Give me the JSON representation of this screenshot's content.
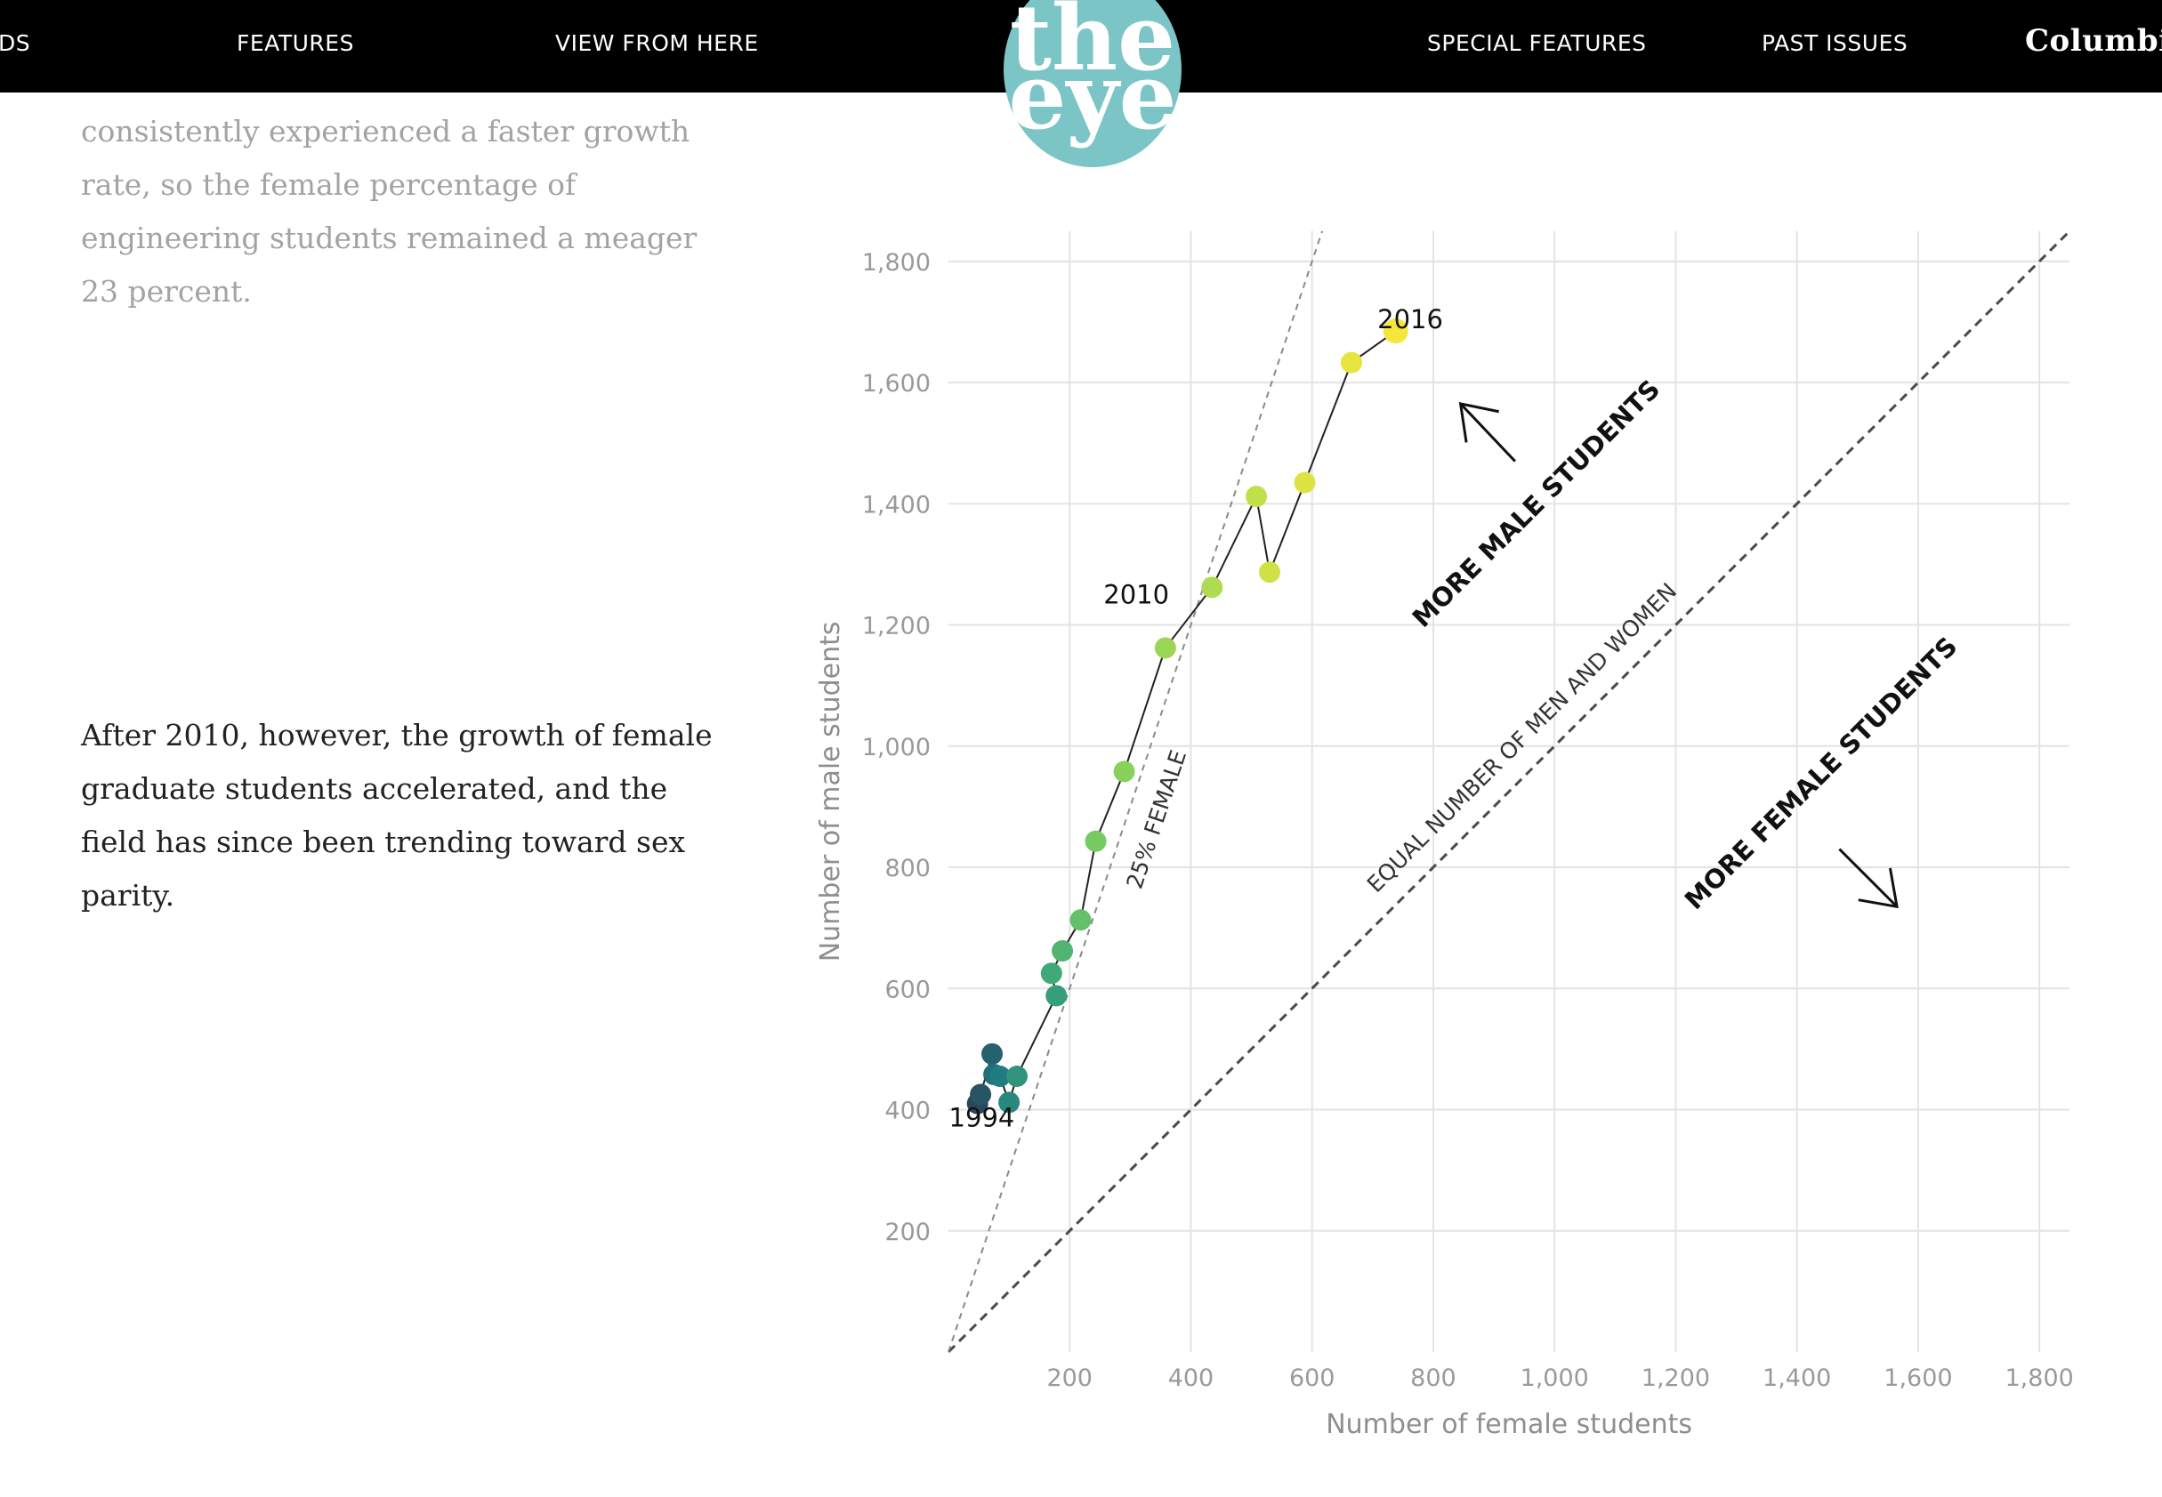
{
  "nav": {
    "partial_left": "DS",
    "features": "FEATURES",
    "view_from_here": "VIEW FROM HERE",
    "special_features": "SPECIAL FEATURES",
    "past_issues": "PAST ISSUES",
    "logo_line1": "the",
    "logo_line2": "eye",
    "columbia": "Columbia",
    "logo_color": "#7cc5c7"
  },
  "article": {
    "faded_lines": [
      "consistently experienced a faster growth",
      "rate, so the female percentage of",
      "engineering students remained a meager",
      "23 percent."
    ],
    "main_lines": [
      "After 2010, however, the growth of female",
      "graduate students accelerated, and the",
      "field has since been trending toward sex",
      "parity."
    ]
  },
  "chart_data": {
    "type": "scatter",
    "xlabel": "Number of female students",
    "ylabel": "Number of male students",
    "xlim": [
      0,
      1850
    ],
    "ylim": [
      0,
      1850
    ],
    "xticks": [
      200,
      400,
      600,
      800,
      1000,
      1200,
      1400,
      1600,
      1800
    ],
    "yticks": [
      200,
      400,
      600,
      800,
      1000,
      1200,
      1400,
      1600,
      1800
    ],
    "xtick_labels": [
      "200",
      "400",
      "600",
      "800",
      "1,000",
      "1,200",
      "1,400",
      "1,600",
      "1,800"
    ],
    "ytick_labels": [
      "200",
      "400",
      "600",
      "800",
      "1,000",
      "1,200",
      "1,400",
      "1,600",
      "1,800"
    ],
    "grid": true,
    "points": [
      {
        "x": 48,
        "y": 410
      },
      {
        "x": 53,
        "y": 425
      },
      {
        "x": 72,
        "y": 492
      },
      {
        "x": 75,
        "y": 458
      },
      {
        "x": 85,
        "y": 455
      },
      {
        "x": 100,
        "y": 412
      },
      {
        "x": 113,
        "y": 455
      },
      {
        "x": 178,
        "y": 588
      },
      {
        "x": 170,
        "y": 625
      },
      {
        "x": 188,
        "y": 662
      },
      {
        "x": 218,
        "y": 713
      },
      {
        "x": 243,
        "y": 843
      },
      {
        "x": 290,
        "y": 958
      },
      {
        "x": 358,
        "y": 1162
      },
      {
        "x": 435,
        "y": 1262
      },
      {
        "x": 508,
        "y": 1412
      },
      {
        "x": 530,
        "y": 1287
      },
      {
        "x": 588,
        "y": 1435
      },
      {
        "x": 665,
        "y": 1633
      },
      {
        "x": 738,
        "y": 1685
      }
    ],
    "point_labels": [
      {
        "text": "1994",
        "x": 55,
        "y": 372
      },
      {
        "text": "2010",
        "x": 310,
        "y": 1235
      },
      {
        "text": "2016",
        "x": 762,
        "y": 1690
      }
    ],
    "reference_lines": [
      {
        "label": "EQUAL NUMBER OF MEN AND WOMEN",
        "slope": 1
      },
      {
        "label": "25% FEMALE",
        "slope": 3
      }
    ],
    "annotations": [
      "MORE MALE STUDENTS",
      "MORE FEMALE STUDENTS"
    ],
    "color_scale": [
      "#2a4858",
      "#1f7a80",
      "#3aa57a",
      "#7ccf5f",
      "#c5e04a",
      "#f5e63a"
    ]
  }
}
